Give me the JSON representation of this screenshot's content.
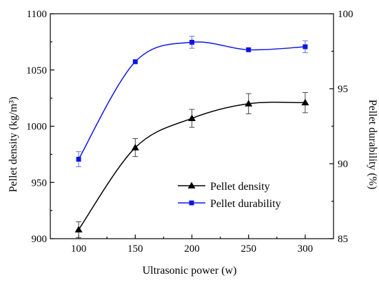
{
  "chart_data": {
    "type": "line",
    "xlabel": "Ultrasonic power (w)",
    "ylabel_left": "Pellet density (kg/m³)",
    "ylabel_right": "Pellet durability (%)",
    "x": [
      100,
      150,
      200,
      250,
      300
    ],
    "xlim": [
      75,
      325
    ],
    "xticks": [
      "100",
      "150",
      "200",
      "250",
      "300"
    ],
    "ylim_left": [
      900,
      1100
    ],
    "yticks_left": [
      "900",
      "950",
      "1000",
      "1050",
      "1100"
    ],
    "ylim_right": [
      85,
      100
    ],
    "yticks_right": [
      "85",
      "90",
      "95",
      "100"
    ],
    "grid": false,
    "legend_position": "lower-right",
    "series": [
      {
        "name": "Pellet density",
        "axis": "left",
        "marker": "triangle",
        "color": "#000000",
        "values": [
          908,
          981,
          1007,
          1020,
          1021
        ],
        "error": [
          7,
          8,
          8,
          9,
          9
        ]
      },
      {
        "name": "Pellet durability",
        "axis": "right",
        "marker": "square",
        "color": "#0a14e6",
        "values": [
          90.3,
          96.8,
          98.1,
          97.6,
          97.8
        ],
        "error": [
          0.5,
          0.0,
          0.4,
          0.0,
          0.4
        ]
      }
    ]
  }
}
